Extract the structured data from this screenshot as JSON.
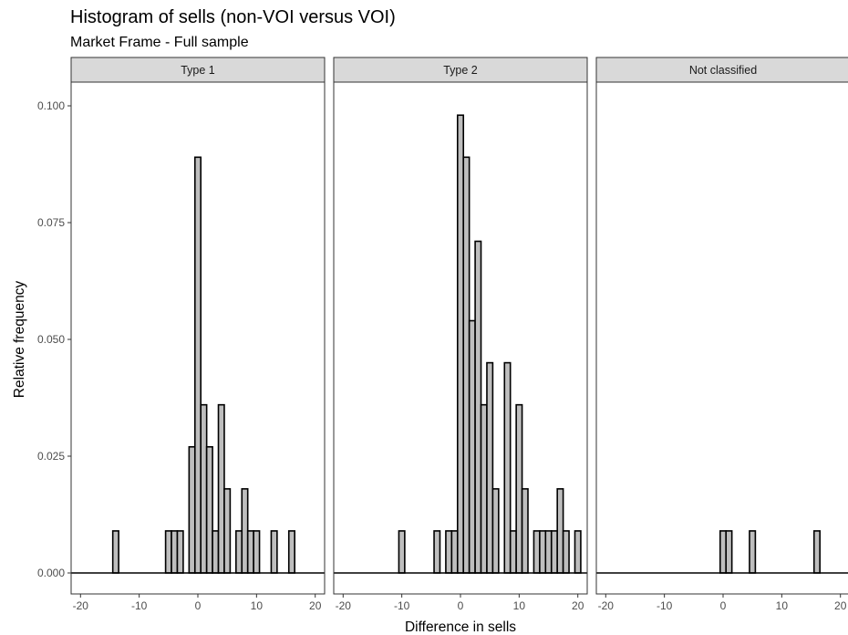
{
  "chart_data": {
    "type": "bar",
    "title": "Histogram of sells (non-VOI versus VOI)",
    "subtitle": "Market Frame - Full sample",
    "xlabel": "Difference in sells",
    "ylabel": "Relative frequency",
    "xlim": [
      -21.6,
      21.6
    ],
    "ylim": [
      0,
      0.1
    ],
    "x_ticks": [
      -20,
      -10,
      0,
      10,
      20
    ],
    "x_tick_labels": [
      "-20",
      "-10",
      "0",
      "10",
      "20"
    ],
    "y_ticks": [
      0,
      0.025,
      0.05,
      0.075,
      0.1
    ],
    "y_tick_labels": [
      "0.000",
      "0.025",
      "0.050",
      "0.075",
      "0.100"
    ],
    "bin_width": 1,
    "grid": false,
    "colors": {
      "bar_fill": "#bebebe",
      "bar_stroke": "#000000",
      "strip_fill": "#d9d9d9",
      "panel_border": "#333333"
    },
    "panels": [
      {
        "label": "Type 1",
        "bins": [
          {
            "x": -14,
            "value": 0.009
          },
          {
            "x": -5,
            "value": 0.009
          },
          {
            "x": -4,
            "value": 0.009
          },
          {
            "x": -3,
            "value": 0.009
          },
          {
            "x": -1,
            "value": 0.027
          },
          {
            "x": 0,
            "value": 0.089
          },
          {
            "x": 1,
            "value": 0.036
          },
          {
            "x": 2,
            "value": 0.027
          },
          {
            "x": 3,
            "value": 0.009
          },
          {
            "x": 4,
            "value": 0.036
          },
          {
            "x": 5,
            "value": 0.018
          },
          {
            "x": 7,
            "value": 0.009
          },
          {
            "x": 8,
            "value": 0.018
          },
          {
            "x": 9,
            "value": 0.009
          },
          {
            "x": 10,
            "value": 0.009
          },
          {
            "x": 13,
            "value": 0.009
          },
          {
            "x": 16,
            "value": 0.009
          }
        ]
      },
      {
        "label": "Type 2",
        "bins": [
          {
            "x": -10,
            "value": 0.009
          },
          {
            "x": -4,
            "value": 0.009
          },
          {
            "x": -2,
            "value": 0.009
          },
          {
            "x": -1,
            "value": 0.009
          },
          {
            "x": 0,
            "value": 0.098
          },
          {
            "x": 1,
            "value": 0.089
          },
          {
            "x": 2,
            "value": 0.054
          },
          {
            "x": 3,
            "value": 0.071
          },
          {
            "x": 4,
            "value": 0.036
          },
          {
            "x": 5,
            "value": 0.045
          },
          {
            "x": 6,
            "value": 0.018
          },
          {
            "x": 8,
            "value": 0.045
          },
          {
            "x": 9,
            "value": 0.009
          },
          {
            "x": 10,
            "value": 0.036
          },
          {
            "x": 11,
            "value": 0.018
          },
          {
            "x": 13,
            "value": 0.009
          },
          {
            "x": 14,
            "value": 0.009
          },
          {
            "x": 15,
            "value": 0.009
          },
          {
            "x": 16,
            "value": 0.009
          },
          {
            "x": 17,
            "value": 0.018
          },
          {
            "x": 18,
            "value": 0.009
          },
          {
            "x": 20,
            "value": 0.009
          }
        ]
      },
      {
        "label": "Not classified",
        "bins": [
          {
            "x": 0,
            "value": 0.009
          },
          {
            "x": 1,
            "value": 0.009
          },
          {
            "x": 5,
            "value": 0.009
          },
          {
            "x": 16,
            "value": 0.009
          }
        ]
      }
    ]
  }
}
